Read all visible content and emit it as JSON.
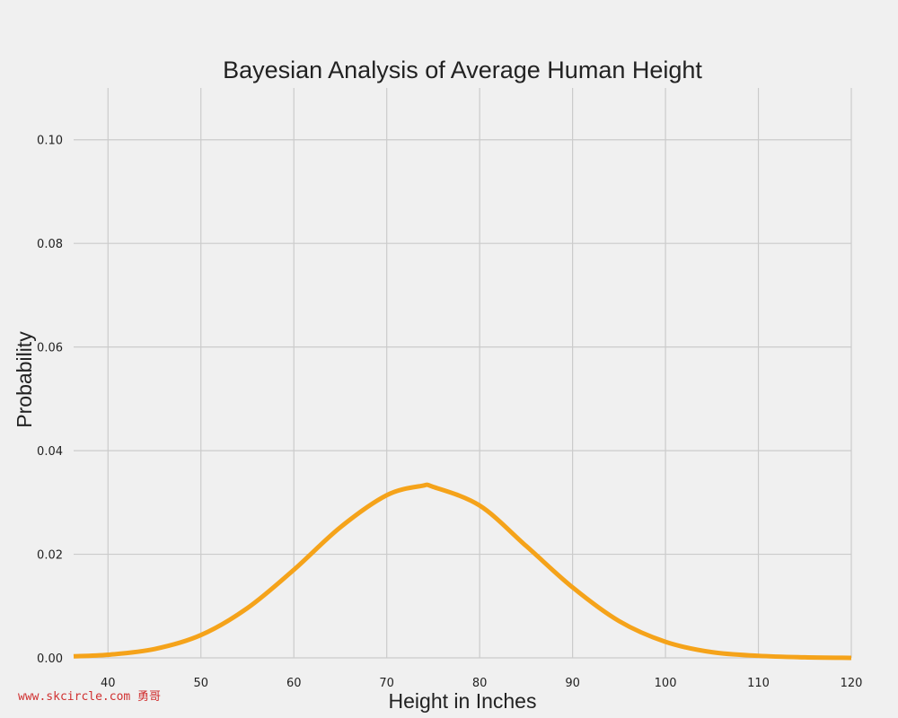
{
  "watermark": "www.skcircle.com 勇哥",
  "chart_data": {
    "type": "line",
    "title": "Bayesian Analysis of Average Human Height",
    "xlabel": "Height in Inches",
    "ylabel": "Probability",
    "xlim": [
      36.3,
      120
    ],
    "ylim": [
      0,
      0.11
    ],
    "xticks": [
      40,
      50,
      60,
      70,
      80,
      90,
      100,
      110,
      120
    ],
    "yticks": [
      0.0,
      0.02,
      0.04,
      0.06,
      0.08,
      0.1
    ],
    "ytick_labels": [
      "0.00",
      "0.02",
      "0.04",
      "0.06",
      "0.08",
      "0.10"
    ],
    "grid": true,
    "series": [
      {
        "color": "#f5a31a",
        "x": [
          36.3,
          40,
          45,
          50,
          55,
          60,
          65,
          70,
          73.8,
          75,
          80,
          85,
          90,
          95,
          100,
          105,
          110,
          115,
          120
        ],
        "y": [
          0.0003,
          0.0006,
          0.0017,
          0.0044,
          0.0096,
          0.017,
          0.0252,
          0.0314,
          0.0332,
          0.033,
          0.0294,
          0.0216,
          0.0136,
          0.0071,
          0.0031,
          0.0011,
          0.0004,
          0.0001,
          0.0
        ]
      }
    ]
  }
}
